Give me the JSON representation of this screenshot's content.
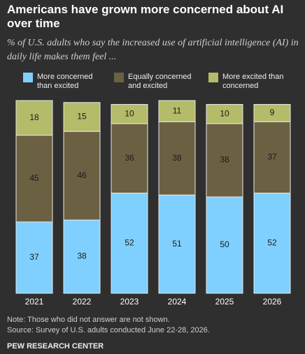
{
  "chart_data": {
    "type": "stacked_bar",
    "title": "Americans have grown more concerned about AI over time",
    "subtitle": "% of U.S. adults who say the increased use of artificial intelligence (AI) in daily life makes them feel ...",
    "categories": [
      "2021",
      "2022",
      "2023",
      "2024",
      "2025",
      "2026"
    ],
    "series": [
      {
        "name": "More concerned than excited",
        "color": "#7fd0ff",
        "values": [
          37,
          38,
          52,
          51,
          50,
          52
        ]
      },
      {
        "name": "Equally concerned and excited",
        "color": "#6b6142",
        "values": [
          45,
          46,
          36,
          38,
          38,
          37
        ]
      },
      {
        "name": "More excited than concerned",
        "color": "#b4bb69",
        "values": [
          18,
          15,
          10,
          11,
          10,
          9
        ]
      }
    ],
    "ylim": [
      0,
      100
    ],
    "note": "Note: Those who did not answer are not shown.",
    "source": "Source: Survey of U.S. adults conducted June 22-28, 2026.",
    "brand": "PEW RESEARCH CENTER"
  }
}
